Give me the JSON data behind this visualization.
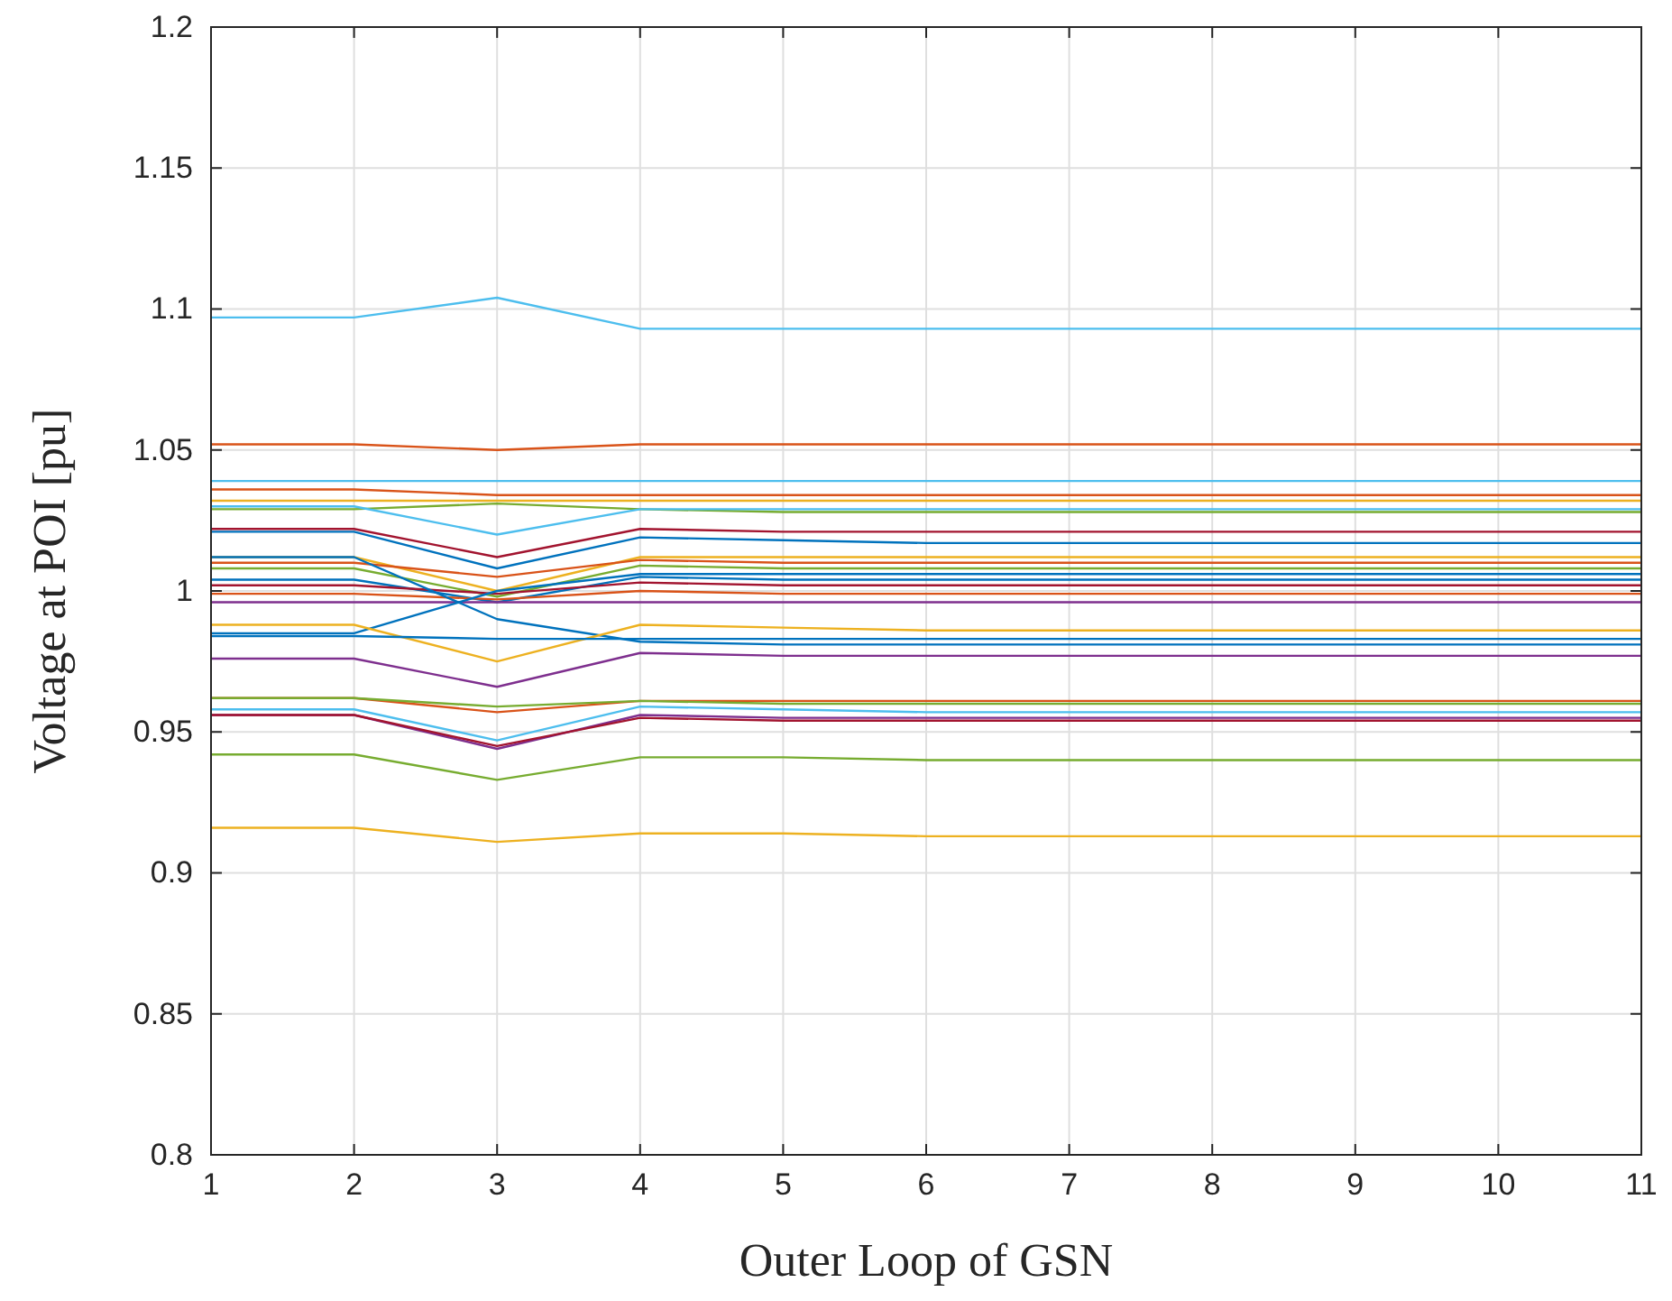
{
  "chart_data": {
    "type": "line",
    "xlabel": "Outer Loop of GSN",
    "ylabel": "Voltage at POI [pu]",
    "x": [
      1,
      2,
      3,
      4,
      5,
      6,
      7,
      8,
      9,
      10,
      11
    ],
    "xlim": [
      1,
      11
    ],
    "xticks": [
      1,
      2,
      3,
      4,
      5,
      6,
      7,
      8,
      9,
      10,
      11
    ],
    "ylim": [
      0.8,
      1.2
    ],
    "yticks": [
      0.8,
      0.85,
      0.9,
      0.95,
      1,
      1.05,
      1.1,
      1.15,
      1.2
    ],
    "grid": true,
    "line_style": "solid",
    "marker": "none",
    "series": [
      {
        "color": "#4dbeee",
        "values": [
          1.097,
          1.097,
          1.104,
          1.093,
          1.093,
          1.093,
          1.093,
          1.093,
          1.093,
          1.093,
          1.093
        ]
      },
      {
        "color": "#d95319",
        "values": [
          1.052,
          1.052,
          1.05,
          1.052,
          1.052,
          1.052,
          1.052,
          1.052,
          1.052,
          1.052,
          1.052
        ]
      },
      {
        "color": "#4dbeee",
        "values": [
          1.039,
          1.039,
          1.039,
          1.039,
          1.039,
          1.039,
          1.039,
          1.039,
          1.039,
          1.039,
          1.039
        ]
      },
      {
        "color": "#d95319",
        "values": [
          1.036,
          1.036,
          1.034,
          1.034,
          1.034,
          1.034,
          1.034,
          1.034,
          1.034,
          1.034,
          1.034
        ]
      },
      {
        "color": "#edb120",
        "values": [
          1.032,
          1.032,
          1.032,
          1.032,
          1.032,
          1.032,
          1.032,
          1.032,
          1.032,
          1.032,
          1.032
        ]
      },
      {
        "color": "#77ac30",
        "values": [
          1.029,
          1.029,
          1.031,
          1.029,
          1.028,
          1.028,
          1.028,
          1.028,
          1.028,
          1.028,
          1.028
        ]
      },
      {
        "color": "#4dbeee",
        "values": [
          1.03,
          1.03,
          1.02,
          1.029,
          1.029,
          1.029,
          1.029,
          1.029,
          1.029,
          1.029,
          1.029
        ]
      },
      {
        "color": "#a2142f",
        "values": [
          1.022,
          1.022,
          1.012,
          1.022,
          1.021,
          1.021,
          1.021,
          1.021,
          1.021,
          1.021,
          1.021
        ]
      },
      {
        "color": "#0072bd",
        "values": [
          1.021,
          1.021,
          1.008,
          1.019,
          1.018,
          1.017,
          1.017,
          1.017,
          1.017,
          1.017,
          1.017
        ]
      },
      {
        "color": "#edb120",
        "values": [
          1.012,
          1.012,
          1.0,
          1.012,
          1.012,
          1.012,
          1.012,
          1.012,
          1.012,
          1.012,
          1.012
        ]
      },
      {
        "color": "#d95319",
        "values": [
          1.01,
          1.01,
          1.005,
          1.011,
          1.01,
          1.01,
          1.01,
          1.01,
          1.01,
          1.01,
          1.01
        ]
      },
      {
        "color": "#77ac30",
        "values": [
          1.008,
          1.008,
          0.998,
          1.009,
          1.008,
          1.008,
          1.008,
          1.008,
          1.008,
          1.008,
          1.008
        ]
      },
      {
        "color": "#0072bd",
        "values": [
          1.004,
          1.004,
          0.996,
          1.005,
          1.004,
          1.004,
          1.004,
          1.004,
          1.004,
          1.004,
          1.004
        ]
      },
      {
        "color": "#a2142f",
        "values": [
          1.002,
          1.002,
          0.999,
          1.003,
          1.002,
          1.002,
          1.002,
          1.002,
          1.002,
          1.002,
          1.002
        ]
      },
      {
        "color": "#d95319",
        "values": [
          0.999,
          0.999,
          0.997,
          1.0,
          0.999,
          0.999,
          0.999,
          0.999,
          0.999,
          0.999,
          0.999
        ]
      },
      {
        "color": "#7e2f8e",
        "values": [
          0.996,
          0.996,
          0.996,
          0.996,
          0.996,
          0.996,
          0.996,
          0.996,
          0.996,
          0.996,
          0.996
        ]
      },
      {
        "color": "#0072bd",
        "values": [
          1.012,
          1.012,
          0.99,
          0.982,
          0.981,
          0.981,
          0.981,
          0.981,
          0.981,
          0.981,
          0.981
        ]
      },
      {
        "color": "#0072bd",
        "values": [
          0.985,
          0.985,
          1.0,
          1.006,
          1.006,
          1.006,
          1.006,
          1.006,
          1.006,
          1.006,
          1.006
        ]
      },
      {
        "color": "#edb120",
        "values": [
          0.988,
          0.988,
          0.975,
          0.988,
          0.987,
          0.986,
          0.986,
          0.986,
          0.986,
          0.986,
          0.986
        ]
      },
      {
        "color": "#0072bd",
        "values": [
          0.984,
          0.984,
          0.983,
          0.983,
          0.983,
          0.983,
          0.983,
          0.983,
          0.983,
          0.983,
          0.983
        ]
      },
      {
        "color": "#7e2f8e",
        "values": [
          0.976,
          0.976,
          0.966,
          0.978,
          0.977,
          0.977,
          0.977,
          0.977,
          0.977,
          0.977,
          0.977
        ]
      },
      {
        "color": "#d95319",
        "values": [
          0.962,
          0.962,
          0.957,
          0.961,
          0.961,
          0.961,
          0.961,
          0.961,
          0.961,
          0.961,
          0.961
        ]
      },
      {
        "color": "#77ac30",
        "values": [
          0.962,
          0.962,
          0.959,
          0.961,
          0.96,
          0.96,
          0.96,
          0.96,
          0.96,
          0.96,
          0.96
        ]
      },
      {
        "color": "#4dbeee",
        "values": [
          0.958,
          0.958,
          0.947,
          0.959,
          0.958,
          0.957,
          0.957,
          0.957,
          0.957,
          0.957,
          0.957
        ]
      },
      {
        "color": "#7e2f8e",
        "values": [
          0.956,
          0.956,
          0.944,
          0.956,
          0.955,
          0.955,
          0.955,
          0.955,
          0.955,
          0.955,
          0.955
        ]
      },
      {
        "color": "#a2142f",
        "values": [
          0.956,
          0.956,
          0.945,
          0.955,
          0.954,
          0.954,
          0.954,
          0.954,
          0.954,
          0.954,
          0.954
        ]
      },
      {
        "color": "#77ac30",
        "values": [
          0.942,
          0.942,
          0.933,
          0.941,
          0.941,
          0.94,
          0.94,
          0.94,
          0.94,
          0.94,
          0.94
        ]
      },
      {
        "color": "#edb120",
        "values": [
          0.916,
          0.916,
          0.911,
          0.914,
          0.914,
          0.913,
          0.913,
          0.913,
          0.913,
          0.913,
          0.913
        ]
      }
    ]
  }
}
